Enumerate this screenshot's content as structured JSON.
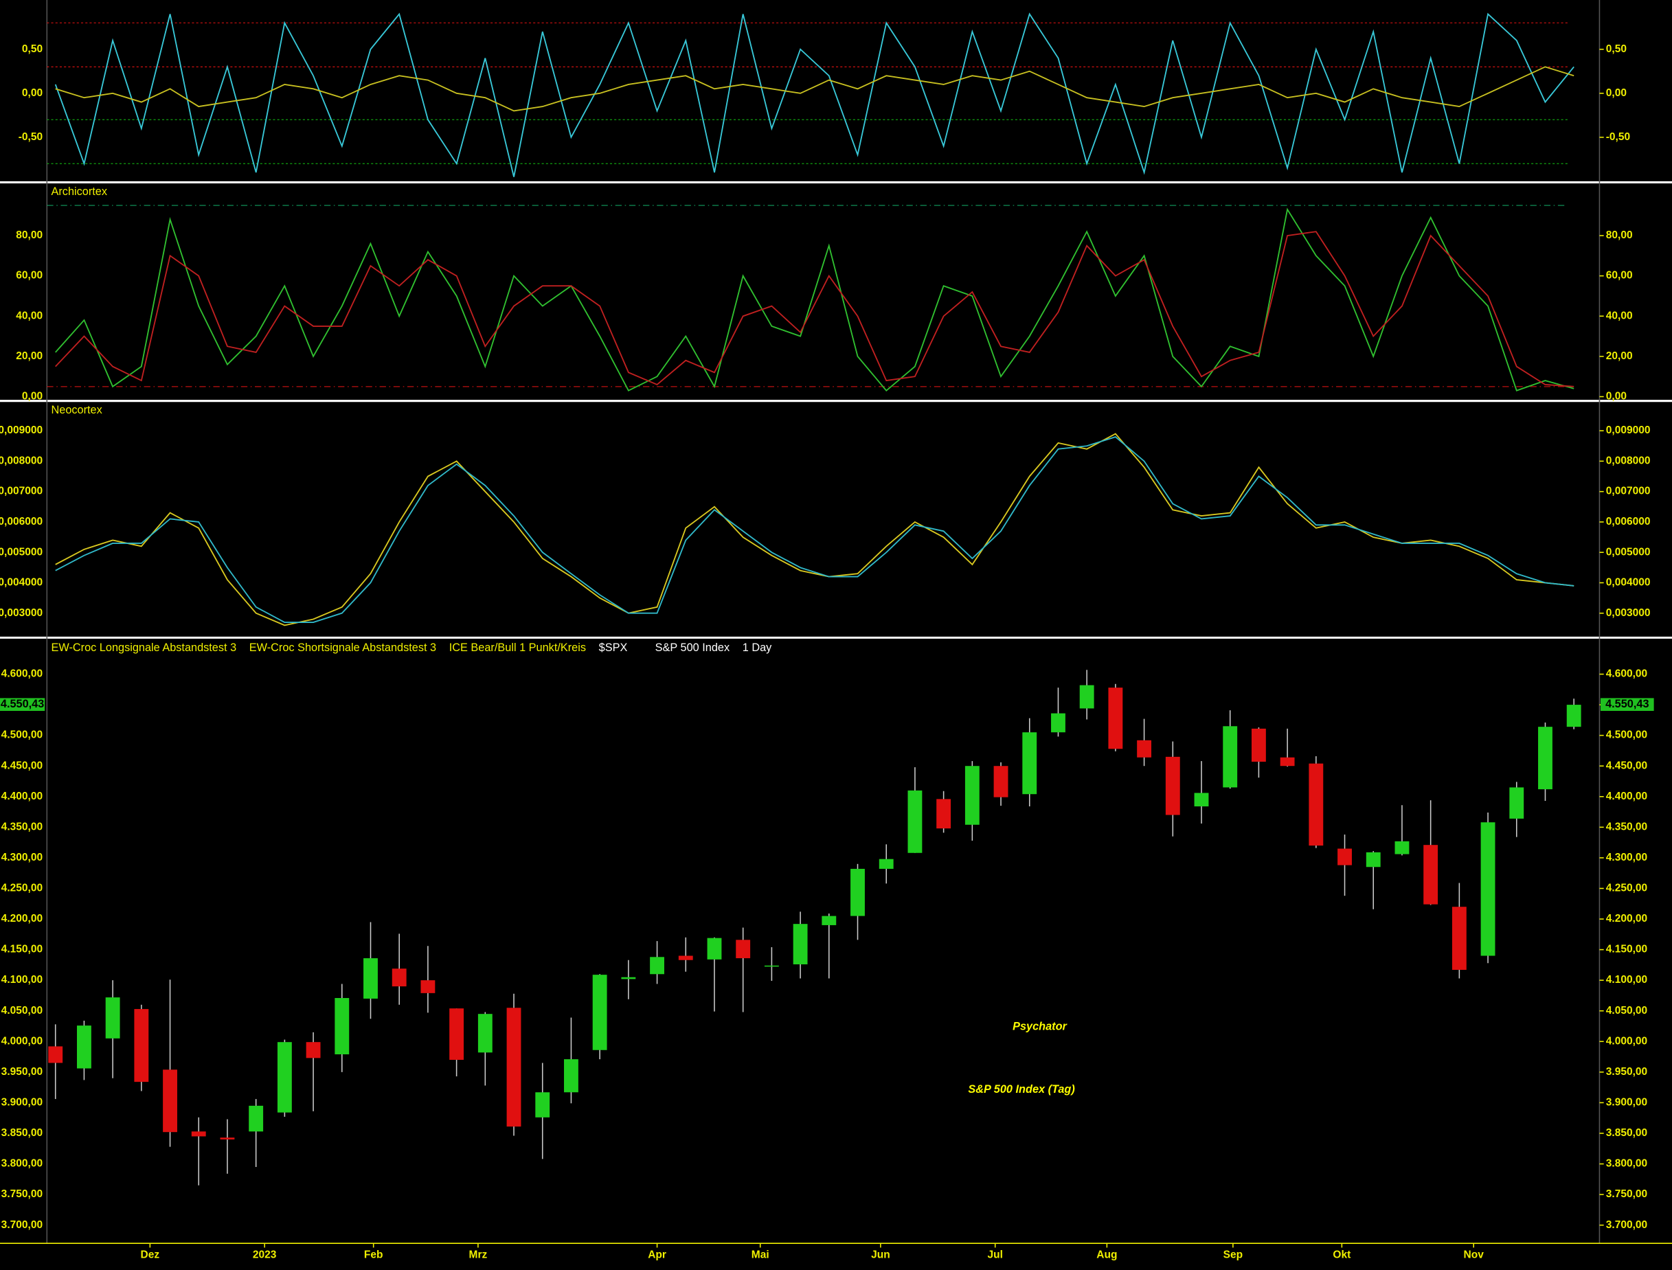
{
  "chart_data": [
    {
      "type": "line",
      "xlim": [
        0,
        53
      ],
      "ylim": [
        -1.0,
        1.06
      ],
      "yticks": [
        {
          "value": 0.5,
          "label": "0,50"
        },
        {
          "value": 0,
          "label": "0,00"
        },
        {
          "value": -0.5,
          "label": "-0,50"
        }
      ],
      "hlines": [
        {
          "value": 0.8,
          "color": "#d01010"
        },
        {
          "value": 0.3,
          "color": "#d01010"
        },
        {
          "value": -0.3,
          "color": "#10a010"
        },
        {
          "value": -0.8,
          "color": "#10a010"
        }
      ],
      "x": [
        0,
        1,
        2,
        3,
        4,
        5,
        6,
        7,
        8,
        9,
        10,
        11,
        12,
        13,
        14,
        15,
        16,
        17,
        18,
        19,
        20,
        21,
        22,
        23,
        24,
        25,
        26,
        27,
        28,
        29,
        30,
        31,
        32,
        33,
        34,
        35,
        36,
        37,
        38,
        39,
        40,
        41,
        42,
        43,
        44,
        45,
        46,
        47,
        48,
        49,
        50,
        51,
        52,
        53
      ],
      "series": [
        {
          "color": "#38c8d8",
          "values": [
            0.1,
            -0.8,
            0.6,
            -0.4,
            0.9,
            -0.7,
            0.3,
            -0.9,
            0.8,
            0.2,
            -0.6,
            0.5,
            0.9,
            -0.3,
            -0.8,
            0.4,
            -0.95,
            0.7,
            -0.5,
            0.1,
            0.8,
            -0.2,
            0.6,
            -0.9,
            0.9,
            -0.4,
            0.5,
            0.2,
            -0.7,
            0.8,
            0.3,
            -0.6,
            0.7,
            -0.2,
            0.9,
            0.4,
            -0.8,
            0.1,
            -0.9,
            0.6,
            -0.5,
            0.8,
            0.2,
            -0.85,
            0.5,
            -0.3,
            0.7,
            -0.9,
            0.4,
            -0.8,
            0.9,
            0.6,
            -0.1,
            0.3
          ]
        },
        {
          "color": "#c8c020",
          "values": [
            0.05,
            -0.05,
            0.0,
            -0.1,
            0.05,
            -0.15,
            -0.1,
            -0.05,
            0.1,
            0.05,
            -0.05,
            0.1,
            0.2,
            0.15,
            0.0,
            -0.05,
            -0.2,
            -0.15,
            -0.05,
            0.0,
            0.1,
            0.15,
            0.2,
            0.05,
            0.1,
            0.05,
            0.0,
            0.15,
            0.05,
            0.2,
            0.15,
            0.1,
            0.2,
            0.15,
            0.25,
            0.1,
            -0.05,
            -0.1,
            -0.15,
            -0.05,
            0.0,
            0.05,
            0.1,
            -0.05,
            0.0,
            -0.1,
            0.05,
            -0.05,
            -0.1,
            -0.15,
            0.0,
            0.15,
            0.3,
            0.2
          ]
        }
      ]
    },
    {
      "type": "line",
      "title": "Archicortex",
      "xlim": [
        0,
        53
      ],
      "ylim": [
        -1.6,
        105.4
      ],
      "yticks": [
        {
          "value": 80,
          "label": "80,00"
        },
        {
          "value": 60,
          "label": "60,00"
        },
        {
          "value": 40,
          "label": "40,00"
        },
        {
          "value": 20,
          "label": "20,00"
        },
        {
          "value": 0,
          "label": "0,00"
        }
      ],
      "hlines": [
        {
          "value": 95,
          "color": "#10a060"
        },
        {
          "value": 5,
          "color": "#c01010"
        }
      ],
      "x": [
        0,
        1,
        2,
        3,
        4,
        5,
        6,
        7,
        8,
        9,
        10,
        11,
        12,
        13,
        14,
        15,
        16,
        17,
        18,
        19,
        20,
        21,
        22,
        23,
        24,
        25,
        26,
        27,
        28,
        29,
        30,
        31,
        32,
        33,
        34,
        35,
        36,
        37,
        38,
        39,
        40,
        41,
        42,
        43,
        44,
        45,
        46,
        47,
        48,
        49,
        50,
        51,
        52,
        53
      ],
      "series": [
        {
          "color": "#30c030",
          "values": [
            22,
            38,
            5,
            15,
            88,
            45,
            16,
            30,
            55,
            20,
            45,
            76,
            40,
            72,
            50,
            15,
            60,
            45,
            55,
            30,
            3,
            10,
            30,
            5,
            60,
            35,
            30,
            75,
            20,
            3,
            15,
            55,
            50,
            10,
            30,
            55,
            82,
            50,
            70,
            20,
            5,
            25,
            20,
            93,
            70,
            55,
            20,
            60,
            89,
            60,
            45,
            3,
            8,
            4
          ]
        },
        {
          "color": "#c02020",
          "values": [
            15,
            30,
            15,
            8,
            70,
            60,
            25,
            22,
            45,
            35,
            35,
            65,
            55,
            68,
            60,
            25,
            45,
            55,
            55,
            45,
            12,
            6,
            18,
            12,
            40,
            45,
            32,
            60,
            40,
            8,
            10,
            40,
            52,
            25,
            22,
            42,
            75,
            60,
            68,
            35,
            10,
            18,
            22,
            80,
            82,
            60,
            30,
            45,
            80,
            65,
            50,
            15,
            6,
            5
          ]
        }
      ]
    },
    {
      "type": "line",
      "title": "Neocortex",
      "xlim": [
        0,
        53
      ],
      "ylim": [
        0.00223,
        0.00991
      ],
      "yticks": [
        {
          "value": 0.009,
          "label": "0,009000"
        },
        {
          "value": 0.008,
          "label": "0,008000"
        },
        {
          "value": 0.007,
          "label": "0,007000"
        },
        {
          "value": 0.006,
          "label": "0,006000"
        },
        {
          "value": 0.005,
          "label": "0,005000"
        },
        {
          "value": 0.004,
          "label": "0,004000"
        },
        {
          "value": 0.003,
          "label": "0,003000"
        }
      ],
      "x": [
        0,
        1,
        2,
        3,
        4,
        5,
        6,
        7,
        8,
        9,
        10,
        11,
        12,
        13,
        14,
        15,
        16,
        17,
        18,
        19,
        20,
        21,
        22,
        23,
        24,
        25,
        26,
        27,
        28,
        29,
        30,
        31,
        32,
        33,
        34,
        35,
        36,
        37,
        38,
        39,
        40,
        41,
        42,
        43,
        44,
        45,
        46,
        47,
        48,
        49,
        50,
        51,
        52,
        53
      ],
      "series": [
        {
          "color": "#d8c820",
          "values": [
            0.0046,
            0.0051,
            0.0054,
            0.0052,
            0.0063,
            0.0058,
            0.0041,
            0.003,
            0.0026,
            0.0028,
            0.0032,
            0.0043,
            0.006,
            0.0075,
            0.008,
            0.007,
            0.006,
            0.0048,
            0.0042,
            0.0035,
            0.003,
            0.0032,
            0.0058,
            0.0065,
            0.0055,
            0.0049,
            0.0044,
            0.0042,
            0.0043,
            0.0052,
            0.006,
            0.0055,
            0.0046,
            0.006,
            0.0075,
            0.0086,
            0.0084,
            0.0089,
            0.0078,
            0.0064,
            0.0062,
            0.0063,
            0.0078,
            0.0066,
            0.0058,
            0.006,
            0.0055,
            0.0053,
            0.0054,
            0.0052,
            0.0048,
            0.0041,
            0.004,
            0.0039
          ]
        },
        {
          "color": "#30b8c8",
          "values": [
            0.0044,
            0.0049,
            0.0053,
            0.0053,
            0.0061,
            0.006,
            0.0045,
            0.0032,
            0.0027,
            0.0027,
            0.003,
            0.004,
            0.0057,
            0.0072,
            0.0079,
            0.0072,
            0.0062,
            0.005,
            0.0043,
            0.0036,
            0.003,
            0.003,
            0.0054,
            0.0064,
            0.0057,
            0.005,
            0.0045,
            0.0042,
            0.0042,
            0.005,
            0.0059,
            0.0057,
            0.0048,
            0.0057,
            0.0072,
            0.0084,
            0.0085,
            0.0088,
            0.008,
            0.0066,
            0.0061,
            0.0062,
            0.0075,
            0.0068,
            0.0059,
            0.0059,
            0.0056,
            0.0053,
            0.0053,
            0.0053,
            0.0049,
            0.0043,
            0.004,
            0.0039
          ]
        }
      ]
    },
    {
      "type": "candlestick",
      "xlim": [
        0,
        53
      ],
      "ylim": [
        3672,
        4630
      ],
      "legend": [
        "EW-Croc Longsignale Abstandstest 3",
        "EW-Croc Shortsignale Abstandstest 3",
        "ICE Bear/Bull 1 Punkt/Kreis",
        "$SPX",
        "S&P 500 Index",
        "1 Day"
      ],
      "title": "Psychator",
      "subtitle": "S&P 500 Index (Tag)",
      "last_value": 4550.43,
      "last_label": "4.550,43",
      "yticks": [
        {
          "value": 4600,
          "label": "4.600,00"
        },
        {
          "value": 4550,
          "label": "4.550,00"
        },
        {
          "value": 4500,
          "label": "4.500,00"
        },
        {
          "value": 4450,
          "label": "4.450,00"
        },
        {
          "value": 4400,
          "label": "4.400,00"
        },
        {
          "value": 4350,
          "label": "4.350,00"
        },
        {
          "value": 4300,
          "label": "4.300,00"
        },
        {
          "value": 4250,
          "label": "4.250,00"
        },
        {
          "value": 4200,
          "label": "4.200,00"
        },
        {
          "value": 4150,
          "label": "4.150,00"
        },
        {
          "value": 4100,
          "label": "4.100,00"
        },
        {
          "value": 4050,
          "label": "4.050,00"
        },
        {
          "value": 4000,
          "label": "4.000,00"
        },
        {
          "value": 3950,
          "label": "3.950,00"
        },
        {
          "value": 3900,
          "label": "3.900,00"
        },
        {
          "value": 3850,
          "label": "3.850,00"
        },
        {
          "value": 3800,
          "label": "3.800,00"
        },
        {
          "value": 3750,
          "label": "3.750,00"
        },
        {
          "value": 3700,
          "label": "3.700,00"
        }
      ],
      "xticks": [
        {
          "value": 3.3,
          "label": "Dez"
        },
        {
          "value": 7.3,
          "label": "2023"
        },
        {
          "value": 11.1,
          "label": "Feb"
        },
        {
          "value": 14.75,
          "label": "Mrz"
        },
        {
          "value": 21.0,
          "label": "Apr"
        },
        {
          "value": 24.6,
          "label": "Mai"
        },
        {
          "value": 28.8,
          "label": "Jun"
        },
        {
          "value": 32.8,
          "label": "Jul"
        },
        {
          "value": 36.7,
          "label": "Aug"
        },
        {
          "value": 41.1,
          "label": "Sep"
        },
        {
          "value": 44.9,
          "label": "Okt"
        },
        {
          "value": 49.5,
          "label": "Nov"
        }
      ],
      "up_color": "#20d020",
      "down_color": "#e01010",
      "x": [
        0,
        1,
        2,
        3,
        4,
        5,
        6,
        7,
        8,
        9,
        10,
        11,
        12,
        13,
        14,
        15,
        16,
        17,
        18,
        19,
        20,
        21,
        22,
        23,
        24,
        25,
        26,
        27,
        28,
        29,
        30,
        31,
        32,
        33,
        34,
        35,
        36,
        37,
        38,
        39,
        40,
        41,
        42,
        43,
        44,
        45,
        46,
        47,
        48,
        49,
        50,
        51,
        52,
        53
      ],
      "open": [
        3992,
        3956,
        4005,
        4053,
        3954,
        3853,
        3843,
        3853,
        3884,
        3999,
        3979,
        4070,
        4119,
        4100,
        4054,
        3982,
        4055,
        3876,
        3917,
        3986,
        4102,
        4110,
        4140,
        4134,
        4166,
        4123,
        4126,
        4190,
        4205,
        4282,
        4308,
        4396,
        4354,
        4450,
        4404,
        4505,
        4544,
        4578,
        4492,
        4465,
        4384,
        4415,
        4511,
        4464,
        4454,
        4315,
        4285,
        4306,
        4321,
        4220,
        4140,
        4364,
        4412,
        4514
      ],
      "high": [
        4028,
        4034,
        4100,
        4060,
        4101,
        3876,
        3873,
        3906,
        4003,
        4015,
        4094,
        4195,
        4176,
        4156,
        4054,
        4048,
        4078,
        3965,
        4039,
        4110,
        4133,
        4164,
        4170,
        4170,
        4186,
        4154,
        4212,
        4209,
        4290,
        4322,
        4448,
        4409,
        4458,
        4456,
        4528,
        4578,
        4607,
        4584,
        4527,
        4490,
        4458,
        4541,
        4513,
        4511,
        4466,
        4338,
        4311,
        4386,
        4394,
        4259,
        4374,
        4424,
        4521,
        4560
      ],
      "low": [
        3906,
        3937,
        3940,
        3919,
        3828,
        3765,
        3784,
        3795,
        3877,
        3886,
        3950,
        4037,
        4060,
        4047,
        3943,
        3928,
        3846,
        3808,
        3899,
        3971,
        4069,
        4094,
        4114,
        4049,
        4048,
        4099,
        4103,
        4103,
        4166,
        4258,
        4308,
        4341,
        4328,
        4385,
        4384,
        4498,
        4526,
        4474,
        4450,
        4335,
        4356,
        4413,
        4431,
        4449,
        4316,
        4238,
        4216,
        4304,
        4223,
        4103,
        4128,
        4334,
        4393,
        4510
      ],
      "close": [
        3965,
        4026,
        4072,
        3934,
        3852,
        3845,
        3840,
        3895,
        3999,
        3973,
        4071,
        4136,
        4090,
        4079,
        3970,
        4045,
        3861,
        3917,
        3971,
        4109,
        4105,
        4138,
        4133,
        4169,
        4136,
        4124,
        4192,
        4205,
        4282,
        4298,
        4410,
        4348,
        4450,
        4399,
        4505,
        4536,
        4582,
        4478,
        4464,
        4370,
        4406,
        4515,
        4457,
        4450,
        4320,
        4288,
        4309,
        4327,
        4224,
        4117,
        4358,
        4415,
        4514,
        4550
      ]
    }
  ]
}
